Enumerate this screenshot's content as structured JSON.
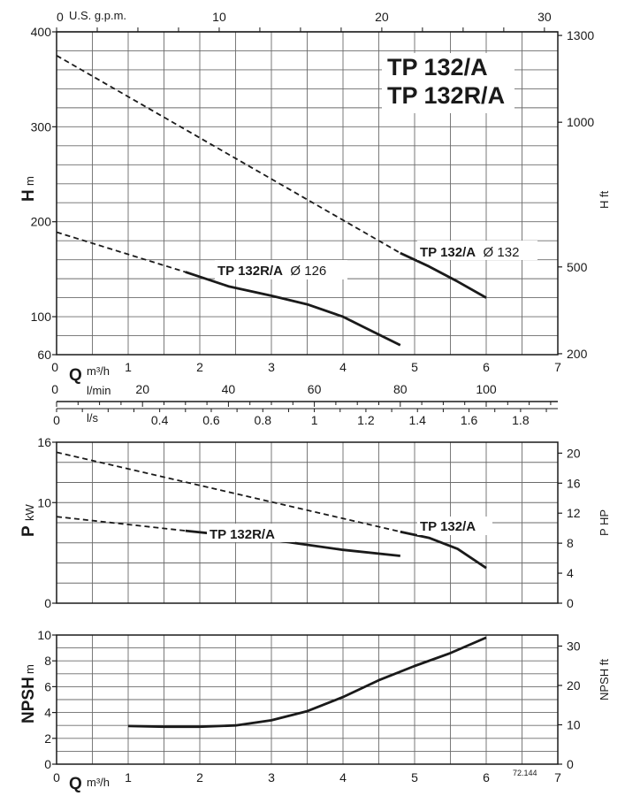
{
  "titles": {
    "line1": "TP 132/A",
    "line2": "TP 132R/A"
  },
  "code": "72.144",
  "accent_color": "#2a9fd6",
  "chart_data": [
    {
      "name": "head",
      "type": "line",
      "ylabel": "H",
      "ylabel_unit": "m",
      "y2label": "H ft",
      "xlim": [
        0,
        7
      ],
      "ylim": [
        60,
        400
      ],
      "y_ticks": [
        60,
        100,
        200,
        300,
        400
      ],
      "y2_ticks": [
        {
          "label": "200",
          "at_m": 61
        },
        {
          "label": "500",
          "at_m": 152.4
        },
        {
          "label": "1000",
          "at_m": 304.8
        },
        {
          "label": "1300",
          "at_m": 396.2
        }
      ],
      "series": [
        {
          "name": "TP 132/A",
          "diameter_label": "Ø 132",
          "dashed": [
            [
              0,
              375
            ],
            [
              4.8,
              167
            ]
          ],
          "solid": [
            [
              4.8,
              167
            ],
            [
              5.2,
              153
            ],
            [
              5.6,
              137
            ],
            [
              6,
              120
            ]
          ]
        },
        {
          "name": "TP 132R/A",
          "diameter_label": "Ø 126",
          "dashed": [
            [
              0,
              189
            ],
            [
              1.8,
              147
            ]
          ],
          "solid": [
            [
              1.8,
              147
            ],
            [
              2.4,
              132
            ],
            [
              3,
              122
            ],
            [
              3.5,
              113
            ],
            [
              4,
              100
            ],
            [
              4.4,
              85
            ],
            [
              4.8,
              70
            ]
          ]
        }
      ]
    },
    {
      "name": "power",
      "type": "line",
      "ylabel": "P",
      "ylabel_unit": "kW",
      "y2label": "P HP",
      "xlim": [
        0,
        7
      ],
      "ylim": [
        0,
        16
      ],
      "y_ticks": [
        0,
        10,
        16
      ],
      "y2_ticks": [
        0,
        4,
        8,
        12,
        16,
        20
      ],
      "series": [
        {
          "name": "TP 132/A",
          "dashed": [
            [
              0,
              15
            ],
            [
              4.8,
              7.1
            ]
          ],
          "solid": [
            [
              4.8,
              7.1
            ],
            [
              5.2,
              6.5
            ],
            [
              5.6,
              5.4
            ],
            [
              6,
              3.5
            ]
          ]
        },
        {
          "name": "TP 132R/A",
          "dashed": [
            [
              0,
              8.6
            ],
            [
              1.8,
              7.2
            ]
          ],
          "solid": [
            [
              1.8,
              7.2
            ],
            [
              3,
              6.3
            ],
            [
              4,
              5.3
            ],
            [
              4.8,
              4.7
            ]
          ]
        }
      ]
    },
    {
      "name": "npsh",
      "type": "line",
      "ylabel": "NPSH",
      "ylabel_unit": "m",
      "y2label": "NPSH ft",
      "xlim": [
        0,
        7
      ],
      "ylim": [
        0,
        10
      ],
      "y_ticks": [
        0,
        2,
        4,
        6,
        8,
        10
      ],
      "y2_ticks": [
        0,
        10,
        20,
        30
      ],
      "series": [
        {
          "name": "NPSH",
          "solid": [
            [
              1,
              2.95
            ],
            [
              1.5,
              2.9
            ],
            [
              2,
              2.9
            ],
            [
              2.5,
              3
            ],
            [
              3,
              3.4
            ],
            [
              3.5,
              4.1
            ],
            [
              4,
              5.2
            ],
            [
              4.5,
              6.5
            ],
            [
              5,
              7.6
            ],
            [
              5.5,
              8.6
            ],
            [
              6,
              9.8
            ]
          ]
        }
      ]
    }
  ],
  "x_axes": {
    "gpm": {
      "label": "U.S. g.p.m.",
      "ticks": [
        "0",
        "10",
        "20",
        "30"
      ],
      "values": [
        0,
        10,
        20,
        30
      ]
    },
    "q_top": {
      "label": "Q",
      "unit": "m³/h",
      "ticks": [
        "1",
        "2",
        "3",
        "4",
        "5",
        "6",
        "7"
      ],
      "values": [
        1,
        2,
        3,
        4,
        5,
        6,
        7
      ]
    },
    "lmin": {
      "label": "l/min",
      "ticks": [
        "0",
        "20",
        "40",
        "60",
        "80",
        "100"
      ],
      "values": [
        0,
        20,
        40,
        60,
        80,
        100
      ]
    },
    "ls": {
      "label": "l/s",
      "ticks": [
        "0",
        "0.4",
        "0.6",
        "0.8",
        "1",
        "1.2",
        "1.4",
        "1.6",
        "1.8"
      ],
      "values": [
        0,
        0.4,
        0.6,
        0.8,
        1,
        1.2,
        1.4,
        1.6,
        1.8
      ]
    },
    "q_bottom": {
      "label": "Q",
      "unit": "m³/h",
      "ticks": [
        "0",
        "1",
        "2",
        "3",
        "4",
        "5",
        "6",
        "7"
      ],
      "values": [
        0,
        1,
        2,
        3,
        4,
        5,
        6,
        7
      ]
    }
  }
}
